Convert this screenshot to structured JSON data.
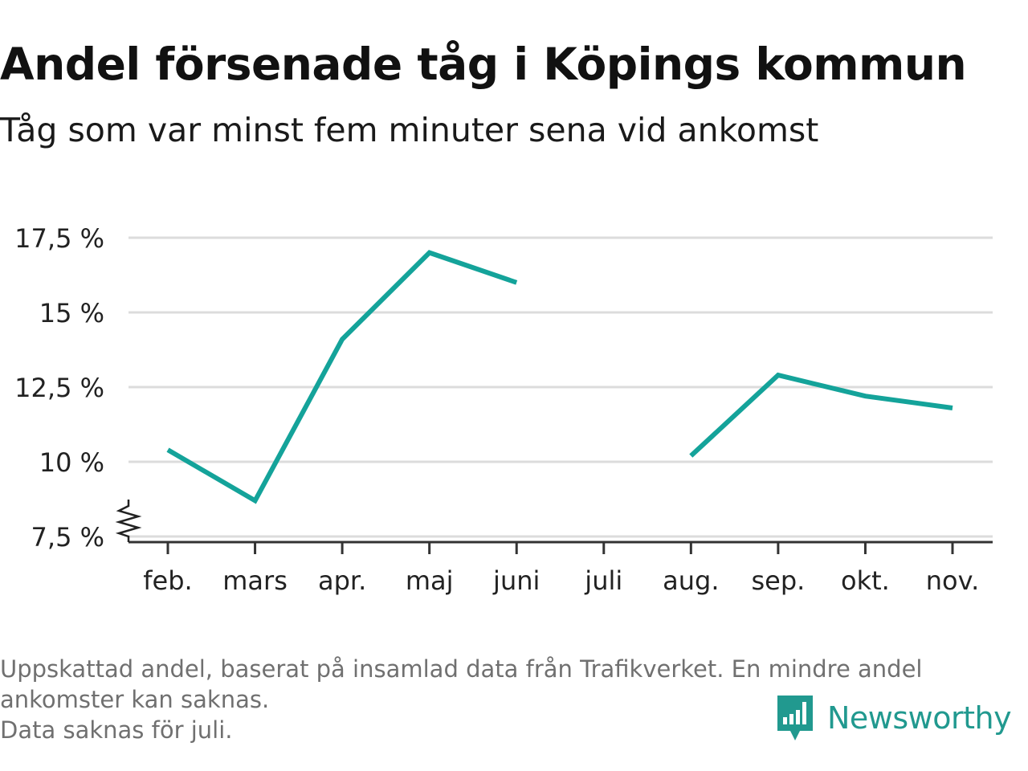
{
  "header": {
    "title": "Andel försenade tåg i Köpings kommun",
    "subtitle": "Tåg som var minst fem minuter sena vid ankomst"
  },
  "chart_data": {
    "type": "line",
    "title": "Andel försenade tåg i Köpings kommun",
    "subtitle": "Tåg som var minst fem minuter sena vid ankomst",
    "categories": [
      "feb.",
      "mars",
      "apr.",
      "maj",
      "juni",
      "juli",
      "aug.",
      "sep.",
      "okt.",
      "nov."
    ],
    "series": [
      {
        "values": [
          10.4,
          8.7,
          14.1,
          17.0,
          16.0,
          null,
          10.2,
          12.9,
          12.2,
          11.8
        ],
        "color": "#14a39a"
      }
    ],
    "y_ticks": [
      7.5,
      10,
      12.5,
      15,
      17.5
    ],
    "y_tick_labels": [
      "7,5 %",
      "10 %",
      "12,5 %",
      "15 %",
      "17,5 %"
    ],
    "ylim": [
      7.5,
      17.5
    ],
    "y_axis_break": true,
    "grid": true,
    "xlabel": "",
    "ylabel": ""
  },
  "footer": {
    "note_lines": [
      "Uppskattad andel, baserat på insamlad data från Trafikverket. En mindre andel",
      "ankomster kan saknas.",
      "Data saknas för juli."
    ],
    "brand": "Newsworthy",
    "brand_icon": "newsworthy-logo-icon",
    "brand_color": "#21998f"
  }
}
